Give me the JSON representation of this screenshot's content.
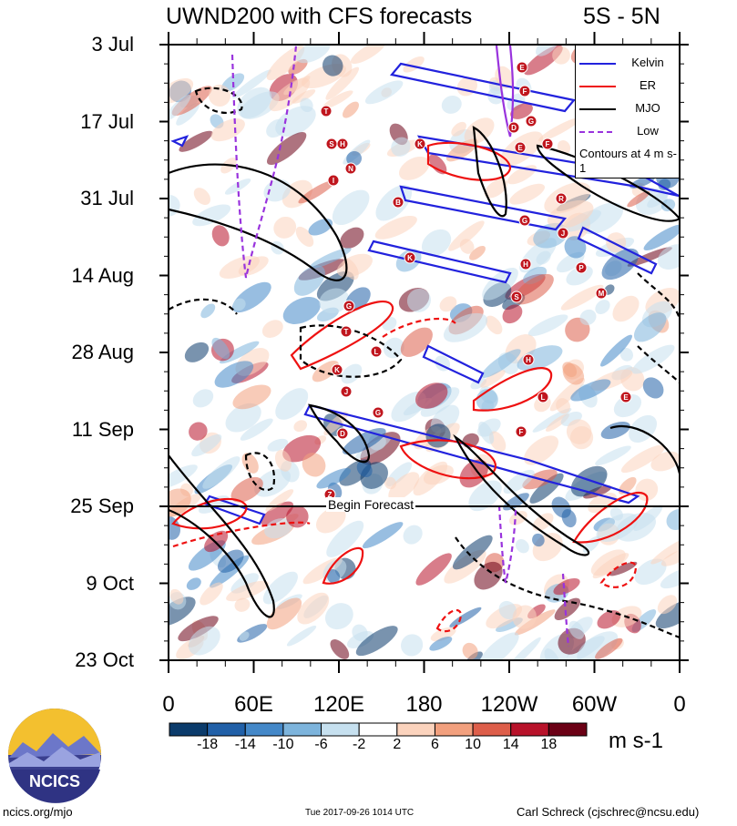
{
  "chart_data": {
    "type": "heatmap",
    "title": "UWND200 with CFS forecasts",
    "region": "5S - 5N",
    "y_labels": [
      "3 Jul",
      "17 Jul",
      "31 Jul",
      "14 Aug",
      "28 Aug",
      "11 Sep",
      "25 Sep",
      "9 Oct",
      "23 Oct"
    ],
    "x_labels": [
      "0",
      "60E",
      "120E",
      "180",
      "120W",
      "60W",
      "0"
    ],
    "forecast_label": "Begin Forecast",
    "legend": [
      {
        "name": "Kelvin",
        "color": "#2222dd",
        "dash": false
      },
      {
        "name": "ER",
        "color": "#ee1111",
        "dash": false
      },
      {
        "name": "MJO",
        "color": "#000000",
        "dash": false
      },
      {
        "name": "Low",
        "color": "#9933dd",
        "dash": true
      }
    ],
    "legend_note": "Contours at 4 m s-1",
    "colorbar": {
      "labels": [
        "-18",
        "-14",
        "-10",
        "-6",
        "-2",
        "2",
        "6",
        "10",
        "14",
        "18"
      ],
      "colors": [
        "#0b3b6b",
        "#2160a8",
        "#4488c8",
        "#7db4dc",
        "#c6e0ef",
        "#ffffff",
        "#fbd3bd",
        "#f2a07e",
        "#dd5e4a",
        "#b8122a",
        "#6b0015"
      ],
      "units": "m s-1"
    },
    "storm_labels": [
      "E",
      "F",
      "G",
      "D",
      "T",
      "S",
      "H",
      "K",
      "N",
      "I",
      "E",
      "F",
      "R",
      "B",
      "G",
      "J",
      "K",
      "H",
      "P",
      "S",
      "M",
      "G",
      "T",
      "L",
      "K",
      "J",
      "G",
      "H",
      "L",
      "E",
      "F",
      "D",
      "Z"
    ]
  },
  "footer": {
    "left": "ncics.org/mjo",
    "center": "Tue 2017-09-26 1014 UTC",
    "right": "Carl Schreck (cjschrec@ncsu.edu)"
  },
  "logo": {
    "text": "NCICS"
  }
}
